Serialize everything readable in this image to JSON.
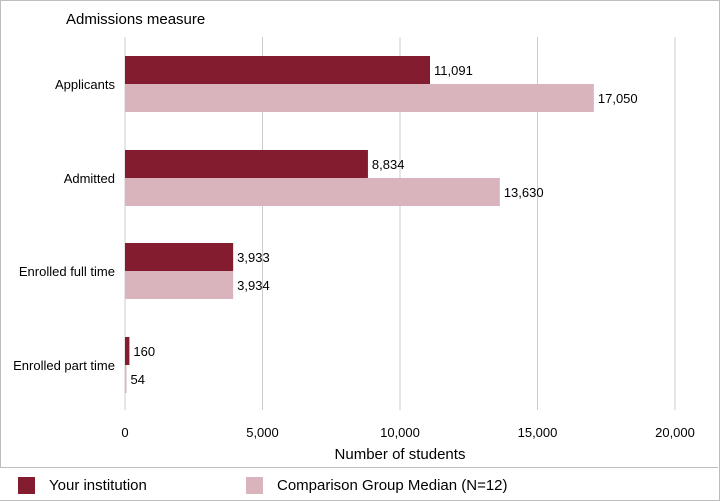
{
  "chart_data": {
    "type": "bar",
    "orientation": "horizontal",
    "title": "Admissions measure",
    "xlabel": "Number of students",
    "ylabel": "",
    "categories": [
      "Applicants",
      "Admitted",
      "Enrolled full time",
      "Enrolled part time"
    ],
    "series": [
      {
        "name": "Your institution",
        "values": [
          11091,
          8834,
          3933,
          160
        ],
        "labels": [
          "11,091",
          "8,834",
          "3,933",
          "160"
        ],
        "color": "#841c2f"
      },
      {
        "name": "Comparison Group Median (N=12)",
        "values": [
          17050,
          13630,
          3934,
          54
        ],
        "labels": [
          "17,050",
          "13,630",
          "3,934",
          "54"
        ],
        "color": "#d9b4bc"
      }
    ],
    "xlim": [
      0,
      20000
    ],
    "xticks": [
      0,
      5000,
      10000,
      15000,
      20000
    ],
    "xtick_labels": [
      "0",
      "5,000",
      "10,000",
      "15,000",
      "20,000"
    ],
    "grid": true,
    "legend_position": "bottom"
  },
  "colors": {
    "grid": "#cccccc",
    "frame": "#bdbdbd"
  }
}
